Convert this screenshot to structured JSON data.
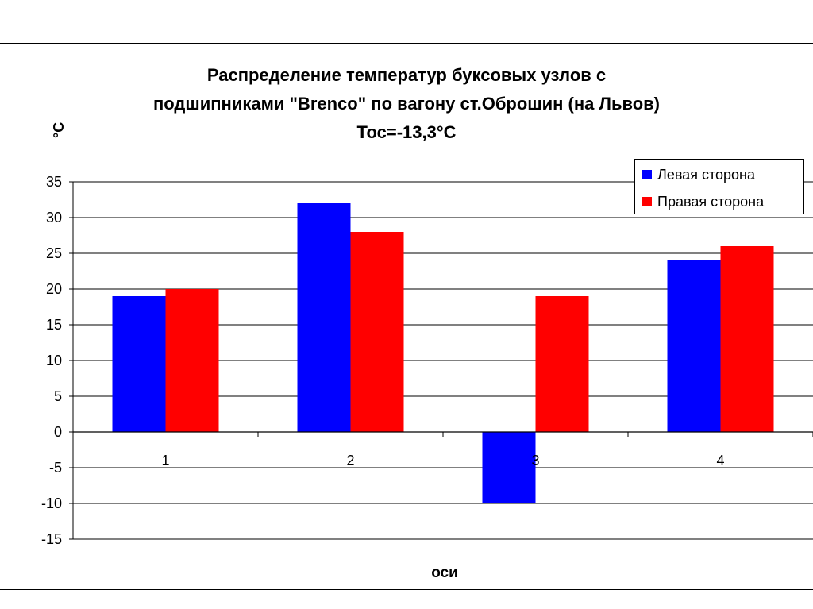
{
  "chart_data": {
    "type": "bar",
    "title": "Распределение температур буксовых узлов с\nподшипниками \"Brenco\" по вагону ст.Оброшин (на Львов)\nТос=-13,3°С",
    "xlabel": "оси",
    "ylabel": "°С",
    "categories": [
      "1",
      "2",
      "3",
      "4"
    ],
    "series": [
      {
        "name": "Левая сторона",
        "values": [
          19,
          32,
          -10,
          24
        ],
        "color": "#0000FF"
      },
      {
        "name": "Правая сторона",
        "values": [
          20,
          28,
          19,
          26
        ],
        "color": "#FF0000"
      }
    ],
    "ylim": [
      -15,
      35
    ],
    "yticks": [
      "35",
      "30",
      "25",
      "20",
      "15",
      "10",
      "5",
      "0",
      "-5",
      "-10",
      "-15"
    ],
    "grid": true,
    "legend_position": "top-right"
  }
}
